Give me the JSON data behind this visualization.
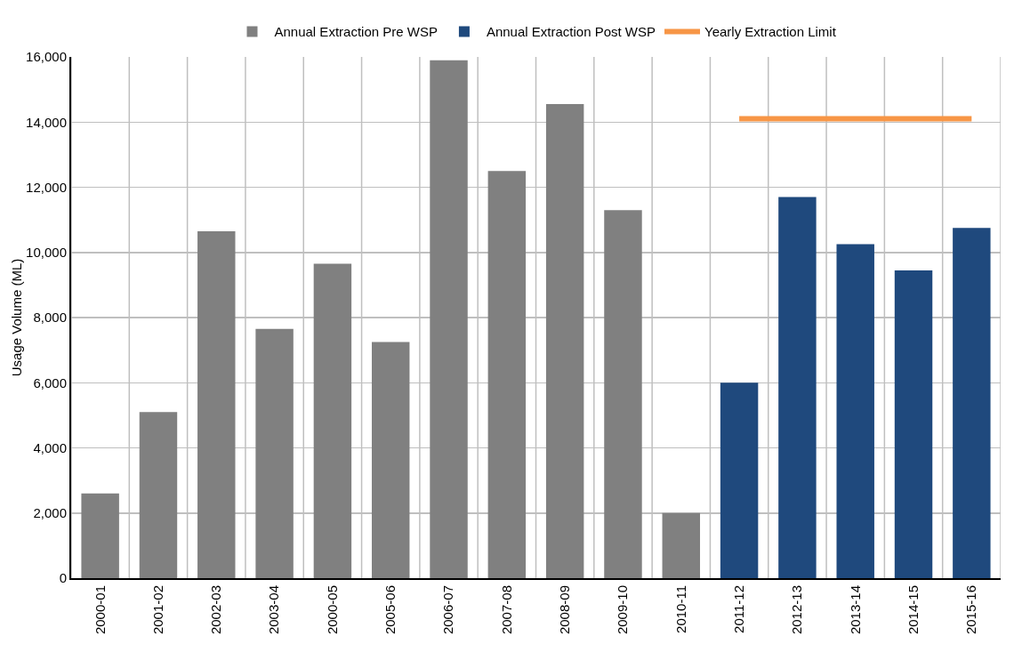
{
  "chart_data": {
    "type": "bar",
    "ylabel": "Usage Volume (ML)",
    "categories": [
      "2000-01",
      "2001-02",
      "2002-03",
      "2003-04",
      "2000-05",
      "2005-06",
      "2006-07",
      "2007-08",
      "2008-09",
      "2009-10",
      "2010-11",
      "2011-12",
      "2012-13",
      "2013-14",
      "2014-15",
      "2015-16"
    ],
    "series": [
      {
        "name": "Annual Extraction Pre WSP",
        "color": "#808080",
        "values": [
          2600,
          5100,
          10650,
          7650,
          9650,
          7250,
          15900,
          12500,
          14550,
          11300,
          2000,
          null,
          null,
          null,
          null,
          null
        ]
      },
      {
        "name": "Annual Extraction Post WSP",
        "color": "#1f497d",
        "values": [
          null,
          null,
          null,
          null,
          null,
          null,
          null,
          null,
          null,
          null,
          null,
          6000,
          11700,
          10250,
          9450,
          10750
        ]
      },
      {
        "name": "Yearly Extraction Limit",
        "type": "line",
        "color": "#f79646",
        "values": [
          null,
          null,
          null,
          null,
          null,
          null,
          null,
          null,
          null,
          null,
          null,
          14100,
          14100,
          14100,
          14100,
          14100
        ]
      }
    ],
    "ylim": [
      0,
      16000
    ],
    "yticks": [
      {
        "value": 0,
        "label": "0"
      },
      {
        "value": 2000,
        "label": "2,000"
      },
      {
        "value": 4000,
        "label": "4,000"
      },
      {
        "value": 6000,
        "label": "6,000"
      },
      {
        "value": 8000,
        "label": "8,000"
      },
      {
        "value": 10000,
        "label": "10,000"
      },
      {
        "value": 12000,
        "label": "12,000"
      },
      {
        "value": 14000,
        "label": "14,000"
      },
      {
        "value": 16000,
        "label": "16,000"
      }
    ],
    "grid": true,
    "legend": "top",
    "marker": "none"
  }
}
